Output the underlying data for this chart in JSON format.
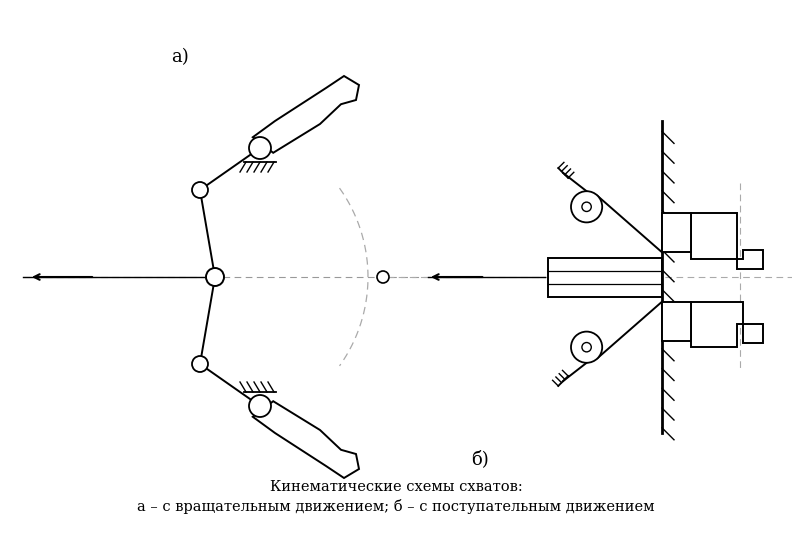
{
  "title_a": "а)",
  "title_b": "б)",
  "caption_line1": "Кинематические схемы схватов:",
  "caption_line2": "а – с вращательным движением; б – с поступательным движением",
  "bg_color": "#ffffff",
  "line_color": "#000000",
  "font_size_label": 13,
  "font_size_caption": 10.5
}
